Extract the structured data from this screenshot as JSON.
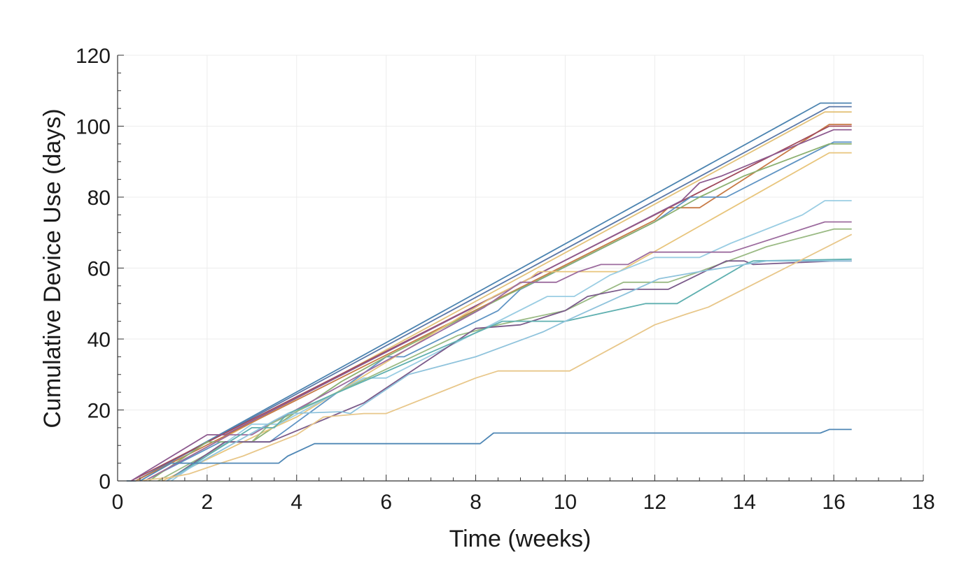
{
  "chart_data": {
    "type": "line",
    "title": "",
    "xlabel": "Time (weeks)",
    "ylabel": "Cumulative Device Use (days)",
    "xlim": [
      0,
      18
    ],
    "ylim": [
      0,
      120
    ],
    "xticks": [
      0,
      2,
      4,
      6,
      8,
      10,
      12,
      14,
      16,
      18
    ],
    "yticks": [
      0,
      20,
      40,
      60,
      80,
      100,
      120
    ],
    "grid": true,
    "legend": "none",
    "series": [
      {
        "color": "#4c84b0",
        "points": [
          [
            0.2,
            0
          ],
          [
            0.4,
            0
          ],
          [
            15.7,
            106.5
          ],
          [
            16.4,
            106.5
          ]
        ]
      },
      {
        "color": "#5a78a8",
        "points": [
          [
            0.4,
            0
          ],
          [
            15.9,
            105.5
          ],
          [
            16.4,
            105.5
          ]
        ]
      },
      {
        "color": "#e3c27a",
        "points": [
          [
            0.6,
            0
          ],
          [
            15.8,
            104
          ],
          [
            16.4,
            104
          ]
        ]
      },
      {
        "color": "#c77a45",
        "points": [
          [
            0.4,
            0
          ],
          [
            12,
            73.5
          ],
          [
            12.3,
            77
          ],
          [
            13,
            77
          ],
          [
            15.9,
            100.5
          ],
          [
            16.4,
            100.5
          ]
        ]
      },
      {
        "color": "#a04a5c",
        "points": [
          [
            0.3,
            0
          ],
          [
            15.9,
            100
          ],
          [
            16.4,
            100
          ]
        ]
      },
      {
        "color": "#8d5a8f",
        "points": [
          [
            0.3,
            0
          ],
          [
            2,
            13
          ],
          [
            2.4,
            13
          ],
          [
            12.6,
            79
          ],
          [
            13,
            84
          ],
          [
            13.5,
            86
          ],
          [
            16,
            99
          ],
          [
            16.4,
            99
          ]
        ]
      },
      {
        "color": "#5f94c4",
        "points": [
          [
            0.6,
            0
          ],
          [
            2.3,
            11
          ],
          [
            3.4,
            11
          ],
          [
            6,
            35
          ],
          [
            6.4,
            35
          ],
          [
            8.5,
            48
          ],
          [
            9,
            54
          ],
          [
            12,
            73
          ],
          [
            12.8,
            80
          ],
          [
            13.6,
            80
          ],
          [
            16,
            95.5
          ],
          [
            16.4,
            95.5
          ]
        ]
      },
      {
        "color": "#8bb070",
        "points": [
          [
            0.7,
            0
          ],
          [
            2,
            11
          ],
          [
            3,
            11
          ],
          [
            5,
            28
          ],
          [
            6,
            35
          ],
          [
            8.8,
            53
          ],
          [
            9.3,
            56
          ],
          [
            12,
            73
          ],
          [
            13,
            80
          ],
          [
            14,
            86
          ],
          [
            15.9,
            95
          ],
          [
            16.4,
            95
          ]
        ]
      },
      {
        "color": "#e8c57c",
        "points": [
          [
            1,
            0
          ],
          [
            3.3,
            14
          ],
          [
            4,
            18
          ],
          [
            8.4,
            52
          ],
          [
            9.2,
            57
          ],
          [
            9.4,
            59
          ],
          [
            11.2,
            59
          ],
          [
            15.9,
            92.5
          ],
          [
            16.4,
            92.5
          ]
        ]
      },
      {
        "color": "#9acde3",
        "points": [
          [
            1.2,
            0
          ],
          [
            3,
            16
          ],
          [
            3.6,
            16
          ],
          [
            5.5,
            29
          ],
          [
            6,
            29
          ],
          [
            9.6,
            52
          ],
          [
            10.2,
            52
          ],
          [
            11,
            58
          ],
          [
            12,
            63
          ],
          [
            13,
            63
          ],
          [
            13.7,
            67
          ],
          [
            15.3,
            75
          ],
          [
            15.8,
            79
          ],
          [
            16.4,
            79
          ]
        ]
      },
      {
        "color": "#9c6b9e",
        "points": [
          [
            0.6,
            0
          ],
          [
            2.5,
            13
          ],
          [
            3,
            13
          ],
          [
            3.4,
            16
          ],
          [
            8.2,
            49
          ],
          [
            9,
            56
          ],
          [
            9.8,
            56
          ],
          [
            10.3,
            59
          ],
          [
            10.8,
            61
          ],
          [
            11.4,
            61
          ],
          [
            11.9,
            64.5
          ],
          [
            13.7,
            64.5
          ],
          [
            15.8,
            73
          ],
          [
            16.4,
            73
          ]
        ]
      },
      {
        "color": "#9aba84",
        "points": [
          [
            0.9,
            0
          ],
          [
            2.5,
            11
          ],
          [
            3,
            11
          ],
          [
            3.4,
            16
          ],
          [
            7.6,
            41
          ],
          [
            8.5,
            44
          ],
          [
            10,
            48
          ],
          [
            11.3,
            56
          ],
          [
            12.3,
            56
          ],
          [
            13,
            59
          ],
          [
            14.5,
            66
          ],
          [
            16,
            71
          ],
          [
            16.4,
            71
          ]
        ]
      },
      {
        "color": "#7a5a8a",
        "points": [
          [
            1.1,
            0
          ],
          [
            2.4,
            11
          ],
          [
            3.4,
            11
          ],
          [
            5.5,
            22
          ],
          [
            8,
            43
          ],
          [
            9,
            44
          ],
          [
            10,
            48
          ],
          [
            10.5,
            52
          ],
          [
            11.3,
            54
          ],
          [
            12.3,
            54
          ],
          [
            13.6,
            62
          ],
          [
            14,
            62
          ],
          [
            14.2,
            61
          ],
          [
            16,
            62
          ],
          [
            16.4,
            62
          ]
        ]
      },
      {
        "color": "#5fb0b0",
        "points": [
          [
            1.1,
            0
          ],
          [
            3,
            15
          ],
          [
            3.5,
            15
          ],
          [
            3.8,
            19
          ],
          [
            4.2,
            21
          ],
          [
            8.6,
            45
          ],
          [
            10,
            45
          ],
          [
            11.8,
            50
          ],
          [
            12.5,
            50
          ],
          [
            14,
            61
          ],
          [
            14.2,
            62
          ],
          [
            16.4,
            62.5
          ]
        ]
      },
      {
        "color": "#8fc3dc",
        "points": [
          [
            1.1,
            0
          ],
          [
            3.5,
            17
          ],
          [
            3.8,
            19
          ],
          [
            5,
            19.5
          ],
          [
            5.2,
            19
          ],
          [
            6.5,
            30
          ],
          [
            8,
            35
          ],
          [
            9.5,
            42
          ],
          [
            10,
            45
          ],
          [
            11.4,
            53
          ],
          [
            12.1,
            57
          ],
          [
            13,
            59
          ],
          [
            14.5,
            62
          ],
          [
            16.4,
            62
          ]
        ]
      },
      {
        "color": "#e8c78a",
        "points": [
          [
            0.4,
            0
          ],
          [
            1.2,
            1
          ],
          [
            1.6,
            2
          ],
          [
            2.3,
            5
          ],
          [
            2.8,
            7
          ],
          [
            4,
            13
          ],
          [
            4.6,
            18
          ],
          [
            5.5,
            19
          ],
          [
            6,
            19
          ],
          [
            8,
            29
          ],
          [
            8.5,
            31
          ],
          [
            10.1,
            31
          ],
          [
            12,
            44
          ],
          [
            12.7,
            47
          ],
          [
            13.2,
            49
          ],
          [
            16.4,
            69.5
          ]
        ]
      },
      {
        "color": "#4f87b5",
        "points": [
          [
            0.5,
            0
          ],
          [
            1.2,
            5
          ],
          [
            3.6,
            5
          ],
          [
            3.8,
            7
          ],
          [
            4.4,
            10.5
          ],
          [
            8.1,
            10.5
          ],
          [
            8.4,
            13.5
          ],
          [
            15.7,
            13.5
          ],
          [
            15.9,
            14.5
          ],
          [
            16.4,
            14.5
          ]
        ]
      }
    ]
  }
}
